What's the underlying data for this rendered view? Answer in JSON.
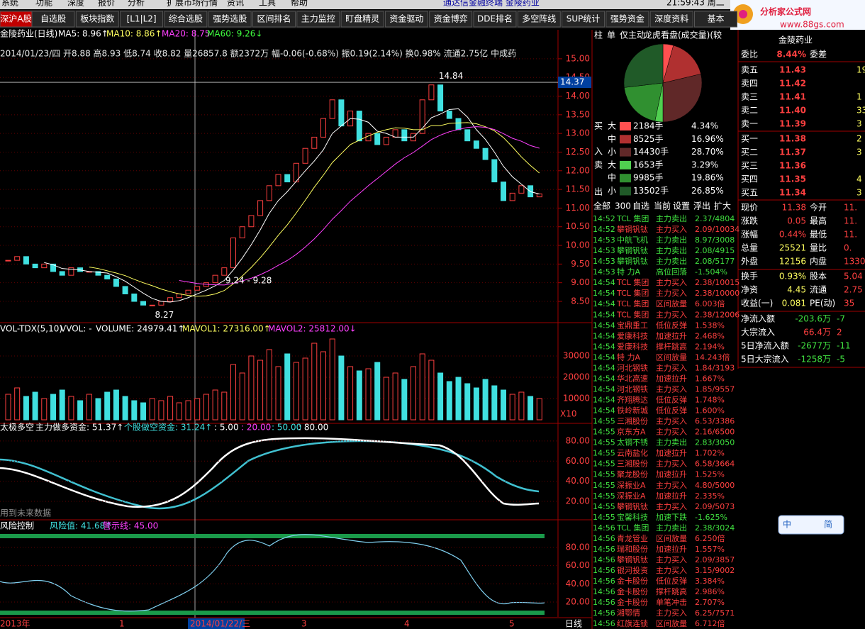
{
  "menu": [
    "系统",
    "功能",
    "深度",
    "报价",
    "分析",
    "扩展市场行情",
    "资讯",
    "工具",
    "帮助"
  ],
  "window_title": "通达信金融终端  金陵药业",
  "clock": "21:59:43 周二",
  "logo": {
    "title": "分析家公式网",
    "url": "www.88gs.com"
  },
  "tabs": [
    "深沪A股",
    "自选股",
    "板块指数",
    "[L1|L2]",
    "综合选股",
    "强势选股",
    "区间排名",
    "主力监控",
    "盯盘精灵",
    "资金驱动",
    "资金博弈",
    "DDE排名",
    "多空阵线",
    "SUP统计",
    "强势资金",
    "深度资料",
    "基本"
  ],
  "price_panel": {
    "title": "金陵药业(日线)",
    "ma_labels": [
      {
        "text": "MA5: 8.96↑",
        "color": "#ffffff"
      },
      {
        "text": "MA10: 8.86↑",
        "color": "#ffff60"
      },
      {
        "text": "MA20: 8.75",
        "color": "#ff40ff"
      },
      {
        "text": "MA60: 9.26↓",
        "color": "#40ff40"
      }
    ],
    "info": "2014/01/23/四 开8.88 高8.93 低8.74 收8.82 量26857.8 额2372万 幅-0.06(-0.68%) 振0.19(2.14%) 换0.98% 流通2.75亿 中成药",
    "ylim": [
      7.93,
      15.72
    ],
    "yticks": [
      {
        "value": 15,
        "label": "15.00"
      },
      {
        "value": 14.5,
        "label": "14.50"
      },
      {
        "value": 14,
        "label": "14.00"
      },
      {
        "value": 13.5,
        "label": "13.50"
      },
      {
        "value": 13,
        "label": "13.00"
      },
      {
        "value": 12.5,
        "label": "12.50"
      },
      {
        "value": 12,
        "label": "12.00"
      },
      {
        "value": 11.5,
        "label": "11.50"
      },
      {
        "value": 11,
        "label": "11.00"
      },
      {
        "value": 10.5,
        "label": "10.50"
      },
      {
        "value": 10,
        "label": "10.00"
      },
      {
        "value": 9.5,
        "label": "9.50"
      },
      {
        "value": 9,
        "label": "9.00"
      },
      {
        "value": 8.5,
        "label": "8.50"
      }
    ],
    "current": {
      "value": 14.37,
      "label": "14.37"
    },
    "annotations": [
      "14.84",
      "8.27",
      "9.24 - 9.28"
    ],
    "closes": [
      9.6,
      9.7,
      9.5,
      9.4,
      9.5,
      9.3,
      9.2,
      9.4,
      9.3,
      9.3,
      9.2,
      9.1,
      8.9,
      8.7,
      8.5,
      8.4,
      8.4,
      8.5,
      8.6,
      8.7,
      8.8,
      8.9,
      9.0,
      9.2,
      9.4,
      10.2,
      10.5,
      10.8,
      11.2,
      11.6,
      11.9,
      11.7,
      12.2,
      12.6,
      12.9,
      13.4,
      13.9,
      13.2,
      13.6,
      12.8,
      13.0,
      12.7,
      12.9,
      13.1,
      12.8,
      13.0,
      13.9,
      14.3,
      13.6,
      13.4,
      13.1,
      12.8,
      12.6,
      12.3,
      11.7,
      11.2,
      11.4,
      11.6,
      11.3,
      11.38
    ]
  },
  "volume_panel": {
    "labels": [
      {
        "text": "VOL-TDX(5,10)",
        "color": "#ffffff"
      },
      {
        "text": "VVOL: -",
        "color": "#ffffff"
      },
      {
        "text": "VOLUME: 24979.41↑",
        "color": "#ffffff"
      },
      {
        "text": "MAVOL1: 27316.00↑",
        "color": "#ffff60"
      },
      {
        "text": "MAVOL2: 25812.00↓",
        "color": "#ff40ff"
      }
    ],
    "ylim": [
      0,
      40667
    ],
    "yticks": [
      30000,
      20000,
      10000
    ],
    "unit": "X10",
    "values": [
      12000,
      15000,
      11000,
      13000,
      10000,
      12000,
      14000,
      11000,
      9000,
      12000,
      10000,
      13000,
      14000,
      11000,
      9000,
      8000,
      10000,
      9000,
      11000,
      8000,
      9000,
      10000,
      12000,
      14000,
      13000,
      26000,
      22000,
      30000,
      28000,
      33000,
      25000,
      31000,
      27000,
      29000,
      36000,
      32000,
      38000,
      30000,
      25000,
      23000,
      24000,
      27000,
      20000,
      22000,
      19000,
      25000,
      31000,
      28000,
      22000,
      18000,
      20000,
      17000,
      15000,
      19000,
      16000,
      14000,
      12000,
      13000,
      11000,
      10000
    ]
  },
  "indicator_panel": {
    "labels": [
      {
        "text": "太极多空",
        "color": "#ffffff"
      },
      {
        "text": "主力做多资金: 51.37↑",
        "color": "#ffffff"
      },
      {
        "text": "个股做空资金: 31.24↑",
        "color": "#40e0e0"
      },
      {
        "text": ": 5.00",
        "color": "#ffffff"
      },
      {
        "text": ": 20.00",
        "color": "#ff40ff"
      },
      {
        "text": ": 50.00",
        "color": "#40e0e0"
      },
      {
        "text": ": 80.00",
        "color": "#ffffff"
      }
    ],
    "ylim": [
      3.8,
      87
    ],
    "yticks": [
      {
        "value": 80,
        "label": "80.00"
      },
      {
        "value": 60,
        "label": "60.00"
      },
      {
        "value": 40,
        "label": "40.00"
      },
      {
        "value": 20,
        "label": "20.00"
      }
    ],
    "note": "用到未来数据"
  },
  "risk_panel": {
    "labels": [
      {
        "text": "风险控制",
        "color": "#ffffff"
      },
      {
        "text": "风险值: 41.68↑",
        "color": "#40e0e0"
      },
      {
        "text": "警示线: 45.00",
        "color": "#ff40ff"
      }
    ],
    "ylim": [
      3.6,
      104.9
    ],
    "yticks": [
      {
        "value": 80,
        "label": "80.00"
      },
      {
        "value": 60,
        "label": "60.00"
      },
      {
        "value": 40,
        "label": "40.00"
      },
      {
        "value": 20,
        "label": "20.00"
      }
    ]
  },
  "x_axis": {
    "labels": [
      "2013年",
      "1",
      "2014/01/22/三",
      "3",
      "4",
      "5"
    ],
    "period": "日线"
  },
  "flow": {
    "tabs": [
      "柱",
      "单",
      "仅主动",
      "龙虎看盘(成交量)(较"
    ],
    "side_labels": [
      "买",
      "入",
      "卖",
      "出"
    ],
    "rows": [
      {
        "size": "大",
        "hands": "2184手",
        "pct": 4.34,
        "pct_label": "4.34%",
        "color": "#ff5050"
      },
      {
        "size": "中",
        "hands": "8525手",
        "pct": 16.96,
        "pct_label": "16.96%",
        "color": "#b03030"
      },
      {
        "size": "小",
        "hands": "14430手",
        "pct": 28.7,
        "pct_label": "28.70%",
        "color": "#602828"
      },
      {
        "size": "大",
        "hands": "1653手",
        "pct": 3.29,
        "pct_label": "3.29%",
        "color": "#50d050"
      },
      {
        "size": "中",
        "hands": "9985手",
        "pct": 19.86,
        "pct_label": "19.86%",
        "color": "#309030"
      },
      {
        "size": "小",
        "hands": "13502手",
        "pct": 26.85,
        "pct_label": "26.85%",
        "color": "#205a28"
      }
    ],
    "toolbar": [
      "全部",
      "300",
      "自选",
      "当前",
      "设置",
      "浮出",
      "扩大"
    ]
  },
  "trades": [
    [
      "14:52",
      "TCL 集团",
      "主力卖出",
      "2.37/4804"
    ],
    [
      "14:52",
      "攀钢钒钛",
      "主力买入",
      "2.09/10034"
    ],
    [
      "14:53",
      "中航飞机",
      "主力卖出",
      "8.97/3008"
    ],
    [
      "14:53",
      "攀钢钒钛",
      "主力卖出",
      "2.08/4915"
    ],
    [
      "14:53",
      "攀钢钒钛",
      "主力卖出",
      "2.08/5177"
    ],
    [
      "14:53",
      "特  力A",
      "高位回落",
      "-1.504%"
    ],
    [
      "14:54",
      "TCL 集团",
      "主力买入",
      "2.38/10015"
    ],
    [
      "14:54",
      "TCL 集团",
      "主力买入",
      "2.38/10000"
    ],
    [
      "14:54",
      "TCL 集团",
      "区间放量",
      "6.003倍"
    ],
    [
      "14:54",
      "TCL 集团",
      "主力买入",
      "2.38/12006"
    ],
    [
      "14:54",
      "宝鼎重工",
      "低位反弹",
      "1.538%"
    ],
    [
      "14:54",
      "爱康科技",
      "加速拉升",
      "2.468%"
    ],
    [
      "14:54",
      "爱康科技",
      "撑杆跳高",
      "2.194%"
    ],
    [
      "14:54",
      "特  力A",
      "区间放量",
      "14.243倍"
    ],
    [
      "14:54",
      "河北钢铁",
      "主力买入",
      "1.84/3193"
    ],
    [
      "14:54",
      "华北高速",
      "加速拉升",
      "1.667%"
    ],
    [
      "14:54",
      "河北钢铁",
      "主力买入",
      "1.85/9557"
    ],
    [
      "14:54",
      "齐翔腾达",
      "低位反弹",
      "1.748%"
    ],
    [
      "14:54",
      "铁岭新城",
      "低位反弹",
      "1.600%"
    ],
    [
      "14:55",
      "三湘股份",
      "主力买入",
      "6.53/3386"
    ],
    [
      "14:55",
      "京东方A",
      "主力买入",
      "2.16/6500"
    ],
    [
      "14:55",
      "太钢不锈",
      "主力卖出",
      "2.83/3050"
    ],
    [
      "14:55",
      "云南盐化",
      "加速拉升",
      "1.702%"
    ],
    [
      "14:55",
      "三湘股份",
      "主力买入",
      "6.58/3664"
    ],
    [
      "14:55",
      "聚龙股份",
      "加速拉升",
      "1.525%"
    ],
    [
      "14:55",
      "深振业A",
      "主力买入",
      "4.80/5000"
    ],
    [
      "14:55",
      "深振业A",
      "加速拉升",
      "2.335%"
    ],
    [
      "14:55",
      "攀钢钒钛",
      "主力买入",
      "2.09/5073"
    ],
    [
      "14:55",
      "宝馨科技",
      "加速下跌",
      "-1.625%"
    ],
    [
      "14:56",
      "TCL 集团",
      "主力卖出",
      "2.38/3024"
    ],
    [
      "14:56",
      "青龙管业",
      "区间放量",
      "6.250倍"
    ],
    [
      "14:56",
      "瑞和股份",
      "加速拉升",
      "1.557%"
    ],
    [
      "14:56",
      "攀钢钒钛",
      "主力买入",
      "2.09/3857"
    ],
    [
      "14:56",
      "银河投资",
      "主力买入",
      "3.15/9002"
    ],
    [
      "14:56",
      "金卡股份",
      "低位反弹",
      "3.384%"
    ],
    [
      "14:56",
      "金卡股份",
      "撑杆跳高",
      "2.986%"
    ],
    [
      "14:56",
      "金卡股份",
      "单笔冲击",
      "2.707%"
    ],
    [
      "14:56",
      "湘鄂情",
      "主力买入",
      "6.25/7571"
    ],
    [
      "14:56",
      "红旗连锁",
      "区间放量",
      "6.712倍"
    ]
  ],
  "quote": {
    "stock": "金陵药业",
    "rows": [
      [
        "委比",
        "8.44%",
        "委差"
      ],
      [
        "卖五",
        "11.43",
        "19"
      ],
      [
        "卖四",
        "11.42"
      ],
      [
        "卖三",
        "11.41",
        "1"
      ],
      [
        "卖二",
        "11.40",
        "33"
      ],
      [
        "卖一",
        "11.39",
        "3"
      ],
      [
        "买一",
        "11.38",
        "2"
      ],
      [
        "买二",
        "11.37",
        "3"
      ],
      [
        "买三",
        "11.36"
      ],
      [
        "买四",
        "11.35",
        "4"
      ],
      [
        "买五",
        "11.34",
        "3"
      ],
      [
        "现价",
        "11.38",
        "今开",
        "11."
      ],
      [
        "涨跌",
        "0.05",
        "最高",
        "11."
      ],
      [
        "涨幅",
        "0.44%",
        "最低",
        "11."
      ],
      [
        "总量",
        "25521",
        "量比",
        "0."
      ],
      [
        "外盘",
        "12156",
        "内盘",
        "1330"
      ],
      [
        "换手",
        "0.93%",
        "股本",
        "5.04"
      ],
      [
        "净资",
        "4.45",
        "流通",
        "2.75"
      ],
      [
        "收益(一)",
        "0.081",
        "PE(动)",
        "35"
      ],
      [
        "净流入额",
        "-203.6万",
        "-7"
      ],
      [
        "大宗流入",
        "66.4万",
        "2"
      ],
      [
        "5日净流入额",
        "-2677万",
        "-11"
      ],
      [
        "5日大宗流入",
        "-1258万",
        "-5"
      ]
    ]
  },
  "ime": [
    "中",
    "简"
  ]
}
